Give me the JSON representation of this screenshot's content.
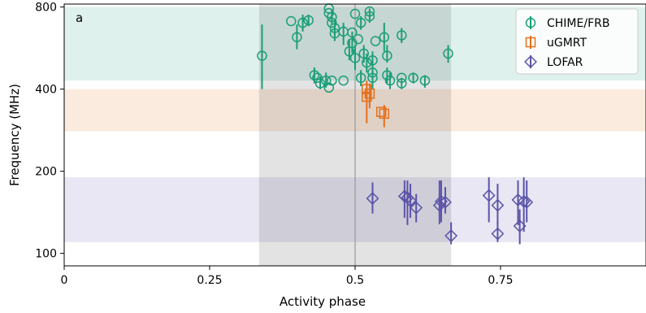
{
  "chart_data": {
    "type": "scatter",
    "panel_label": "a",
    "xlabel": "Activity phase",
    "ylabel": "Frequency (MHz)",
    "xlim": [
      0,
      1
    ],
    "ylim": [
      90,
      820
    ],
    "y_scale": "log",
    "x_ticks": [
      0,
      0.25,
      0.5,
      0.75
    ],
    "x_tick_labels": [
      "0",
      "0.25",
      "0.5",
      "0.75"
    ],
    "y_ticks": [
      100,
      200,
      400,
      800
    ],
    "y_tick_labels": [
      "100",
      "200",
      "400",
      "800"
    ],
    "legend_position": "top-right",
    "activity_window": [
      0.335,
      0.665
    ],
    "phase_center": 0.5,
    "bands": [
      {
        "name": "CHIME/FRB",
        "range": [
          430,
          800
        ],
        "color": "#1b9e77"
      },
      {
        "name": "uGMRT",
        "range": [
          280,
          400
        ],
        "color": "#e6701a"
      },
      {
        "name": "LOFAR",
        "range": [
          110,
          190
        ],
        "color": "#5b53a8"
      }
    ],
    "series": [
      {
        "name": "CHIME/FRB",
        "marker": "circle",
        "color": "#1b9e77",
        "points": [
          {
            "x": 0.34,
            "y": 530,
            "lo": 400,
            "hi": 690
          },
          {
            "x": 0.39,
            "y": 710
          },
          {
            "x": 0.4,
            "y": 620,
            "lo": 560,
            "hi": 690
          },
          {
            "x": 0.41,
            "y": 700,
            "lo": 650,
            "hi": 750
          },
          {
            "x": 0.42,
            "y": 715,
            "lo": 680,
            "hi": 750
          },
          {
            "x": 0.43,
            "y": 450,
            "lo": 420,
            "hi": 480
          },
          {
            "x": 0.435,
            "y": 440
          },
          {
            "x": 0.44,
            "y": 420,
            "lo": 400,
            "hi": 445
          },
          {
            "x": 0.45,
            "y": 430,
            "lo": 405,
            "hi": 460
          },
          {
            "x": 0.455,
            "y": 405
          },
          {
            "x": 0.455,
            "y": 790
          },
          {
            "x": 0.455,
            "y": 760
          },
          {
            "x": 0.46,
            "y": 735,
            "lo": 690,
            "hi": 780
          },
          {
            "x": 0.46,
            "y": 430
          },
          {
            "x": 0.46,
            "y": 700
          },
          {
            "x": 0.465,
            "y": 670,
            "lo": 620,
            "hi": 720
          },
          {
            "x": 0.465,
            "y": 640,
            "lo": 600,
            "hi": 690
          },
          {
            "x": 0.48,
            "y": 650,
            "lo": 580,
            "hi": 700
          },
          {
            "x": 0.48,
            "y": 430
          },
          {
            "x": 0.49,
            "y": 550,
            "lo": 510,
            "hi": 610
          },
          {
            "x": 0.495,
            "y": 590,
            "lo": 540,
            "hi": 650
          },
          {
            "x": 0.495,
            "y": 645
          },
          {
            "x": 0.5,
            "y": 520,
            "lo": 470,
            "hi": 580
          },
          {
            "x": 0.5,
            "y": 755
          },
          {
            "x": 0.505,
            "y": 610
          },
          {
            "x": 0.51,
            "y": 440,
            "lo": 410,
            "hi": 470
          },
          {
            "x": 0.51,
            "y": 700,
            "lo": 660,
            "hi": 740
          },
          {
            "x": 0.515,
            "y": 540,
            "lo": 500,
            "hi": 580
          },
          {
            "x": 0.52,
            "y": 500,
            "lo": 460,
            "hi": 540
          },
          {
            "x": 0.525,
            "y": 770
          },
          {
            "x": 0.525,
            "y": 740,
            "lo": 700,
            "hi": 790
          },
          {
            "x": 0.53,
            "y": 510,
            "lo": 480,
            "hi": 550
          },
          {
            "x": 0.53,
            "y": 460,
            "lo": 430,
            "hi": 495
          },
          {
            "x": 0.53,
            "y": 440,
            "lo": 400,
            "hi": 480
          },
          {
            "x": 0.535,
            "y": 600
          },
          {
            "x": 0.55,
            "y": 620,
            "lo": 550,
            "hi": 700
          },
          {
            "x": 0.555,
            "y": 530,
            "lo": 500,
            "hi": 580
          },
          {
            "x": 0.555,
            "y": 450,
            "lo": 420,
            "hi": 480
          },
          {
            "x": 0.56,
            "y": 430,
            "lo": 400,
            "hi": 460
          },
          {
            "x": 0.58,
            "y": 420,
            "lo": 400,
            "hi": 440
          },
          {
            "x": 0.58,
            "y": 630,
            "lo": 590,
            "hi": 670
          },
          {
            "x": 0.58,
            "y": 440
          },
          {
            "x": 0.6,
            "y": 440,
            "lo": 420,
            "hi": 460
          },
          {
            "x": 0.62,
            "y": 430,
            "lo": 405,
            "hi": 450
          },
          {
            "x": 0.66,
            "y": 540,
            "lo": 500,
            "hi": 580
          }
        ]
      },
      {
        "name": "uGMRT",
        "marker": "square",
        "color": "#e6701a",
        "points": [
          {
            "x": 0.52,
            "y": 400,
            "lo": 370,
            "hi": 430
          },
          {
            "x": 0.52,
            "y": 375,
            "lo": 300,
            "hi": 420
          },
          {
            "x": 0.525,
            "y": 385,
            "lo": 340,
            "hi": 420
          },
          {
            "x": 0.55,
            "y": 325,
            "lo": 290,
            "hi": 350
          },
          {
            "x": 0.545,
            "y": 330
          }
        ]
      },
      {
        "name": "LOFAR",
        "marker": "diamond",
        "color": "#5b53a8",
        "points": [
          {
            "x": 0.53,
            "y": 159,
            "lo": 140,
            "hi": 182
          },
          {
            "x": 0.585,
            "y": 162,
            "lo": 135,
            "hi": 185
          },
          {
            "x": 0.59,
            "y": 160,
            "lo": 127,
            "hi": 185
          },
          {
            "x": 0.595,
            "y": 156,
            "lo": 135,
            "hi": 180
          },
          {
            "x": 0.605,
            "y": 147,
            "lo": 130,
            "hi": 165
          },
          {
            "x": 0.645,
            "y": 150,
            "lo": 128,
            "hi": 185
          },
          {
            "x": 0.648,
            "y": 155,
            "lo": 130,
            "hi": 185
          },
          {
            "x": 0.655,
            "y": 154,
            "lo": 140,
            "hi": 175
          },
          {
            "x": 0.665,
            "y": 116,
            "lo": 108,
            "hi": 130
          },
          {
            "x": 0.73,
            "y": 163,
            "lo": 130,
            "hi": 190
          },
          {
            "x": 0.745,
            "y": 150,
            "lo": 128,
            "hi": 180
          },
          {
            "x": 0.745,
            "y": 118,
            "lo": 110,
            "hi": 130
          },
          {
            "x": 0.78,
            "y": 157,
            "lo": 127,
            "hi": 185
          },
          {
            "x": 0.783,
            "y": 126,
            "lo": 108,
            "hi": 145
          },
          {
            "x": 0.79,
            "y": 155,
            "lo": 120,
            "hi": 190
          },
          {
            "x": 0.795,
            "y": 154,
            "lo": 130,
            "hi": 185
          }
        ]
      }
    ]
  }
}
